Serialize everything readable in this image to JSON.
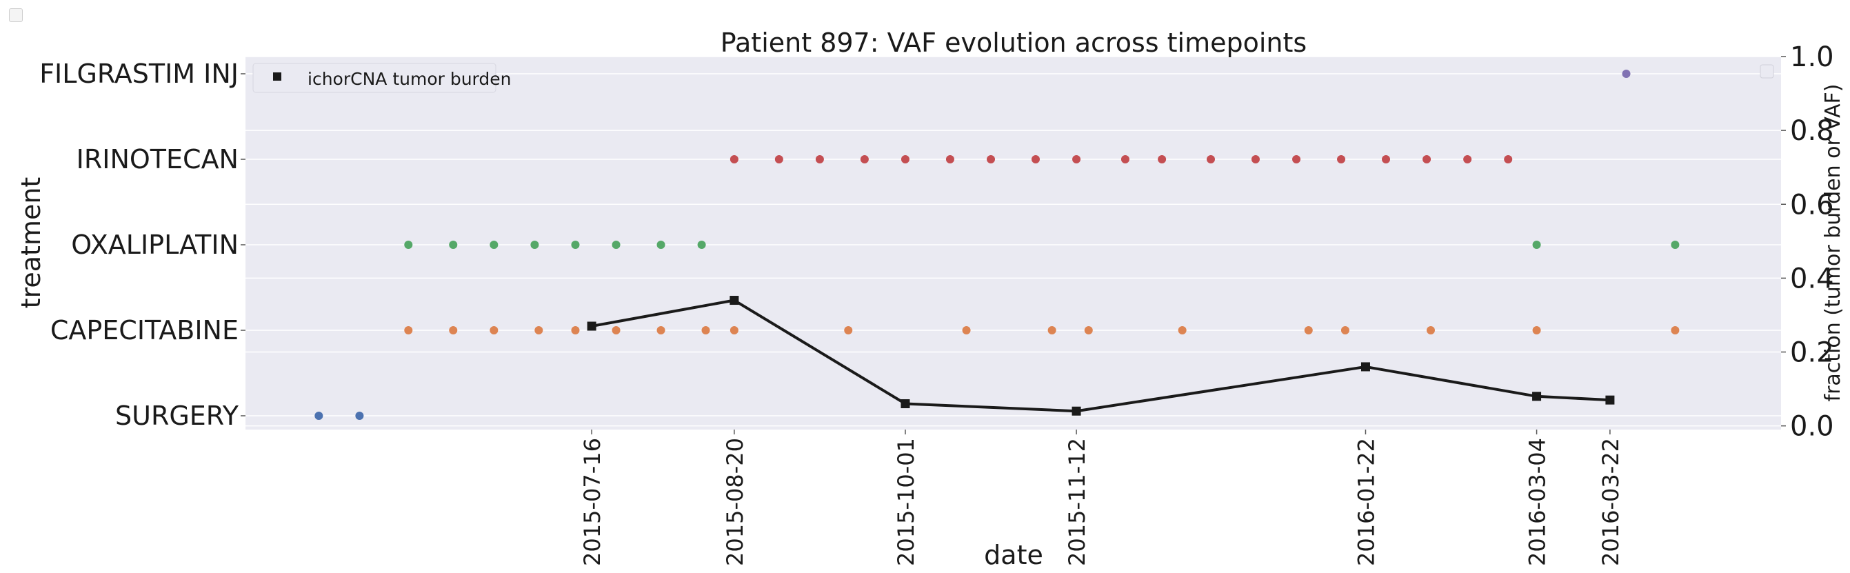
{
  "chart_data": {
    "type": "scatter",
    "title": "Patient 897: VAF evolution across timepoints",
    "xlabel": "date",
    "ylabel_left": "treatment",
    "ylabel_right": "fraction (tumor burden or VAF)",
    "treatments": [
      "FILGRASTIM INJ",
      "IRINOTECAN",
      "OXALIPLATIN",
      "CAPECITABINE",
      "SURGERY"
    ],
    "right_axis": {
      "ylim": [
        -0.01,
        1.0
      ],
      "ticks": [
        "0.0",
        "0.2",
        "0.4",
        "0.6",
        "0.8",
        "1.0"
      ]
    },
    "x_ticks": [
      "2015-07-16",
      "2015-08-20",
      "2015-10-01",
      "2015-11-12",
      "2016-01-22",
      "2016-03-04",
      "2016-03-22"
    ],
    "xlim": [
      "2015-04-22",
      "2016-05-03"
    ],
    "colors": {
      "SURGERY": "#4c72b0",
      "CAPECITABINE": "#dd8452",
      "OXALIPLATIN": "#55a868",
      "IRINOTECAN": "#c44e52",
      "FILGRASTIM INJ": "#8172b3",
      "tumor_burden": "#1a1a1a",
      "plot_background": "#eaeaf2",
      "grid": "#ffffff"
    },
    "treatment_events": [
      {
        "treatment": "SURGERY",
        "dates": [
          "2015-05-10",
          "2015-05-20"
        ]
      },
      {
        "treatment": "CAPECITABINE",
        "dates": [
          "2015-06-01",
          "2015-06-12",
          "2015-06-22",
          "2015-07-03",
          "2015-07-12",
          "2015-07-22",
          "2015-08-02",
          "2015-08-13",
          "2015-08-20",
          "2015-09-17",
          "2015-10-16",
          "2015-11-06",
          "2015-11-15",
          "2015-12-08",
          "2016-01-08",
          "2016-01-17",
          "2016-02-07",
          "2016-03-04",
          "2016-04-07"
        ]
      },
      {
        "treatment": "OXALIPLATIN",
        "dates": [
          "2015-06-01",
          "2015-06-12",
          "2015-06-22",
          "2015-07-02",
          "2015-07-12",
          "2015-07-22",
          "2015-08-02",
          "2015-08-12",
          "2016-03-04",
          "2016-04-07"
        ]
      },
      {
        "treatment": "IRINOTECAN",
        "dates": [
          "2015-08-20",
          "2015-08-31",
          "2015-09-10",
          "2015-09-21",
          "2015-10-01",
          "2015-10-12",
          "2015-10-22",
          "2015-11-02",
          "2015-11-12",
          "2015-11-24",
          "2015-12-03",
          "2015-12-15",
          "2015-12-26",
          "2016-01-05",
          "2016-01-16",
          "2016-01-27",
          "2016-02-06",
          "2016-02-16",
          "2016-02-26"
        ]
      },
      {
        "treatment": "FILGRASTIM INJ",
        "dates": [
          "2016-03-26"
        ]
      }
    ],
    "series": [
      {
        "name": "ichorCNA tumor burden",
        "x": [
          "2015-07-16",
          "2015-08-20",
          "2015-10-01",
          "2015-11-12",
          "2016-01-22",
          "2016-03-04",
          "2016-03-22"
        ],
        "values": [
          0.27,
          0.34,
          0.06,
          0.04,
          0.16,
          0.08,
          0.07
        ]
      }
    ],
    "legend_position": "top-left",
    "grid": true
  }
}
